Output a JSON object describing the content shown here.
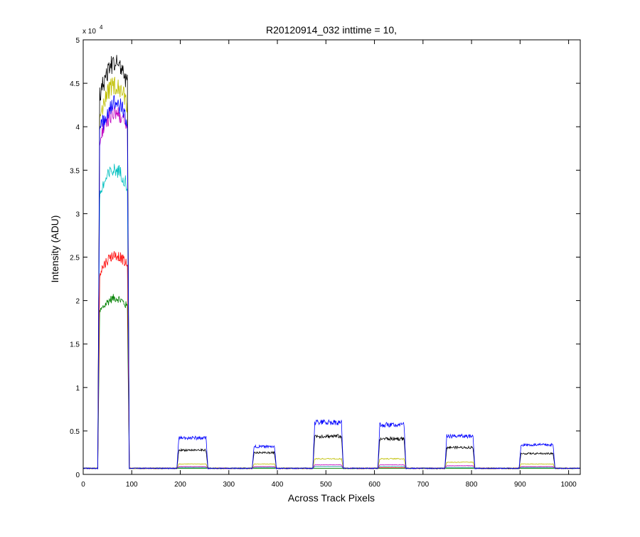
{
  "chart_data": {
    "type": "line",
    "title": "R20120914_032 inttime = 10,",
    "xlabel": "Across Track Pixels",
    "ylabel": "Intensity (ADU)",
    "y_exponent_label": "x 10",
    "y_exponent_power": "4",
    "xlim": [
      0,
      1024
    ],
    "ylim": [
      0,
      5
    ],
    "x_ticks": [
      0,
      100,
      200,
      300,
      400,
      500,
      600,
      700,
      800,
      900,
      1000
    ],
    "y_ticks": [
      0,
      0.5,
      1,
      1.5,
      2,
      2.5,
      3,
      3.5,
      4,
      4.5,
      5
    ],
    "y_tick_labels": [
      "0",
      "0.5",
      "1",
      "1.5",
      "2",
      "2.5",
      "3",
      "3.5",
      "4",
      "4.5",
      "5"
    ],
    "grid": false,
    "baseline": 0.07,
    "series": [
      {
        "color": "#0000ff",
        "values": [
          4.15,
          0.42,
          0.32,
          0.6,
          0.57,
          0.44,
          0.34
        ]
      },
      {
        "color": "#000000",
        "values": [
          4.6,
          0.28,
          0.25,
          0.44,
          0.41,
          0.31,
          0.24
        ]
      },
      {
        "color": "#bfbf00",
        "values": [
          4.35,
          0.12,
          0.12,
          0.18,
          0.18,
          0.14,
          0.12
        ]
      },
      {
        "color": "#bf00bf",
        "values": [
          4.05,
          0.09,
          0.09,
          0.11,
          0.11,
          0.1,
          0.09
        ]
      },
      {
        "color": "#00bfbf",
        "values": [
          3.4,
          0.08,
          0.08,
          0.09,
          0.09,
          0.08,
          0.08
        ]
      },
      {
        "color": "#ff0000",
        "values": [
          2.45,
          0.08,
          0.08,
          0.09,
          0.08,
          0.08,
          0.08
        ]
      },
      {
        "color": "#008000",
        "values": [
          1.97,
          0.07,
          0.07,
          0.07,
          0.07,
          0.07,
          0.07
        ]
      }
    ],
    "plateaus": [
      {
        "start": 30,
        "end": 95
      },
      {
        "start": 193,
        "end": 257
      },
      {
        "start": 348,
        "end": 398
      },
      {
        "start": 473,
        "end": 536
      },
      {
        "start": 607,
        "end": 665
      },
      {
        "start": 745,
        "end": 807
      },
      {
        "start": 898,
        "end": 972
      }
    ]
  }
}
